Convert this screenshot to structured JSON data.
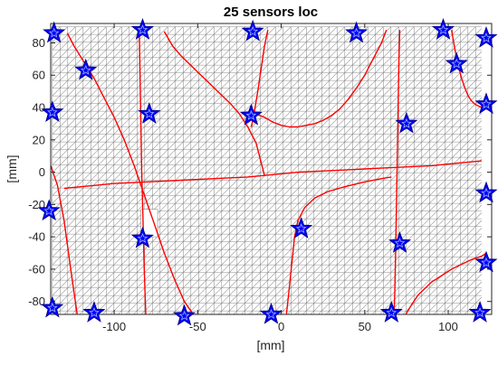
{
  "chart_data": {
    "type": "scatter",
    "title": "25 sensors loc",
    "xlabel": "[mm]",
    "ylabel": "[mm]",
    "xlim": [
      -138,
      126
    ],
    "ylim": [
      -88,
      92
    ],
    "x_ticks": [
      -100,
      -50,
      0,
      50,
      100
    ],
    "y_ticks": [
      -80,
      -60,
      -40,
      -20,
      0,
      20,
      40,
      60,
      80
    ],
    "x_tick_labels": [
      "-100",
      "-50",
      "0",
      "50",
      "100"
    ],
    "y_tick_labels": [
      "-80",
      "-60",
      "-40",
      "-20",
      "0",
      "20",
      "40",
      "60",
      "80"
    ],
    "grid": false,
    "legend": "none",
    "mesh": {
      "description": "triangulated plate mesh",
      "x_range": [
        -137,
        120
      ],
      "y_range": [
        -90,
        90
      ],
      "cutout": {
        "x": [
          -84,
          -74
        ],
        "y": [
          -40,
          -23
        ]
      },
      "color": "#8c8c8c"
    },
    "sensors": {
      "marker": "star",
      "color": "#0000ff",
      "points": [
        {
          "x": -136,
          "y": 86
        },
        {
          "x": -83,
          "y": 88
        },
        {
          "x": -17,
          "y": 87
        },
        {
          "x": 45,
          "y": 86
        },
        {
          "x": 97,
          "y": 88
        },
        {
          "x": 123,
          "y": 83
        },
        {
          "x": -117,
          "y": 63
        },
        {
          "x": 105,
          "y": 67
        },
        {
          "x": -137,
          "y": 37
        },
        {
          "x": -79,
          "y": 36
        },
        {
          "x": -18,
          "y": 35
        },
        {
          "x": 75,
          "y": 30
        },
        {
          "x": 123,
          "y": 42
        },
        {
          "x": 123,
          "y": -13
        },
        {
          "x": -139,
          "y": -24
        },
        {
          "x": 12,
          "y": -35
        },
        {
          "x": -83,
          "y": -41
        },
        {
          "x": 71,
          "y": -44
        },
        {
          "x": 123,
          "y": -56
        },
        {
          "x": -137,
          "y": -84
        },
        {
          "x": -112,
          "y": -87
        },
        {
          "x": -58,
          "y": -89
        },
        {
          "x": -6,
          "y": -88
        },
        {
          "x": 66,
          "y": -87
        },
        {
          "x": 119,
          "y": -87
        }
      ]
    },
    "curves": {
      "color": "#ff0000",
      "series": [
        {
          "x": [
            -130,
            -120,
            -110,
            -100,
            -90,
            -80,
            -70,
            -60,
            -50,
            -40,
            -30,
            -20,
            -10,
            0,
            10,
            20,
            30,
            40,
            50,
            60,
            70,
            80,
            90,
            100,
            110,
            120
          ],
          "y": [
            -10,
            -9,
            -8,
            -7,
            -6.5,
            -6,
            -5.5,
            -5,
            -4.5,
            -4,
            -3.5,
            -3,
            -2,
            -1,
            0,
            0.5,
            1,
            1.5,
            2,
            2.5,
            3,
            3.5,
            4,
            5,
            6,
            7
          ]
        },
        {
          "x": [
            -128,
            -124,
            -118,
            -112,
            -106,
            -100,
            -94,
            -88,
            -82,
            -76,
            -70,
            -64,
            -58,
            -52
          ],
          "y": [
            86,
            78,
            68,
            58,
            46,
            34,
            20,
            4,
            -14,
            -32,
            -50,
            -66,
            -80,
            -89
          ]
        },
        {
          "x": [
            -70,
            -65,
            -60,
            -55,
            -50,
            -45,
            -40,
            -35,
            -30,
            -25,
            -20,
            -15,
            -10
          ],
          "y": [
            87,
            78,
            72,
            67,
            62,
            57,
            52,
            47,
            42,
            36,
            28,
            18,
            -2
          ]
        },
        {
          "x": [
            -15,
            -10,
            -5,
            0,
            5,
            10,
            15,
            20,
            25,
            30,
            35,
            40,
            45,
            50,
            55,
            60,
            63
          ],
          "y": [
            36,
            34,
            31,
            29,
            28,
            28,
            29,
            30,
            32,
            35,
            39,
            45,
            52,
            60,
            70,
            80,
            88
          ]
        },
        {
          "x": [
            -18,
            -17,
            -16,
            -14,
            -12,
            -10,
            -8
          ],
          "y": [
            28,
            32,
            38,
            50,
            64,
            78,
            88
          ]
        },
        {
          "x": [
            3,
            4,
            5,
            6,
            7,
            8,
            10,
            14,
            20,
            28,
            38,
            50,
            60,
            66
          ],
          "y": [
            -89,
            -80,
            -70,
            -60,
            -50,
            -40,
            -30,
            -22,
            -16,
            -12,
            -9,
            -6,
            -4,
            -3
          ]
        },
        {
          "x": [
            -138,
            -134,
            -130,
            -126,
            -122
          ],
          "y": [
            4,
            -8,
            -30,
            -60,
            -89
          ]
        },
        {
          "x": [
            -85,
            -84.5,
            -84,
            -83.5,
            -83,
            -82.5,
            -82,
            -81.5,
            -81
          ],
          "y": [
            88,
            60,
            30,
            0,
            -20,
            -40,
            -60,
            -75,
            -89
          ]
        },
        {
          "x": [
            71,
            70.5,
            70,
            69.5,
            69,
            68.5,
            68,
            67.5
          ],
          "y": [
            88,
            70,
            40,
            10,
            -20,
            -50,
            -75,
            -89
          ]
        },
        {
          "x": [
            102,
            104,
            106,
            108,
            110,
            112,
            114,
            116,
            118,
            120,
            123
          ],
          "y": [
            88,
            76,
            66,
            58,
            52,
            47,
            44,
            42,
            41,
            40,
            39
          ]
        },
        {
          "x": [
            74,
            78,
            82,
            86,
            90,
            96,
            102,
            108,
            114,
            120,
            123
          ],
          "y": [
            -89,
            -82,
            -76,
            -72,
            -68,
            -64,
            -60,
            -57,
            -54,
            -52,
            -50
          ]
        }
      ]
    }
  }
}
